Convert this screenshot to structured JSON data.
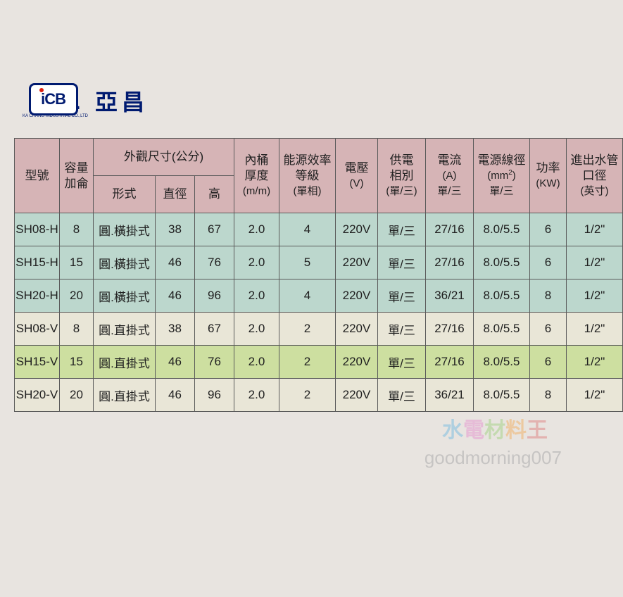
{
  "logo": {
    "box_text": "iCB",
    "brand": "亞昌",
    "subline": "KA CHANG INDUSTRIAL CO.,LTD"
  },
  "header": {
    "model": {
      "l1": "型號"
    },
    "capacity": {
      "l1": "容量",
      "l2": "加侖"
    },
    "dims_group": "外觀尺寸(公分)",
    "form": "形式",
    "diameter": "直徑",
    "height": "高",
    "thickness": {
      "l1": "內桶",
      "l2": "厚度",
      "unit": "(m/m)"
    },
    "efficiency": {
      "l1": "能源效率",
      "l2": "等級",
      "unit": "(單相)"
    },
    "voltage": {
      "l1": "電壓",
      "unit": "(V)"
    },
    "phase": {
      "l1": "供電",
      "l2": "相別",
      "unit": "(單/三)"
    },
    "current": {
      "l1": "電流",
      "unit1": "(A)",
      "unit2": "單/三"
    },
    "wire": {
      "l1": "電源線徑",
      "unit1": "(mm²)",
      "unit2": "單/三"
    },
    "power": {
      "l1": "功率",
      "unit": "(KW)"
    },
    "pipe": {
      "l1": "進出水管",
      "l2": "口徑",
      "unit": "(英寸)"
    }
  },
  "rows": [
    {
      "cls": "teal",
      "model": "SH08-H",
      "cap": "8",
      "form": "圓.橫掛式",
      "dia": "38",
      "hgt": "67",
      "thk": "2.0",
      "eff": "4",
      "volt": "220V",
      "phase": "單/三",
      "amp": "27/16",
      "wire": "8.0/5.5",
      "pow": "6",
      "pipe": "1/2\""
    },
    {
      "cls": "teal",
      "model": "SH15-H",
      "cap": "15",
      "form": "圓.橫掛式",
      "dia": "46",
      "hgt": "76",
      "thk": "2.0",
      "eff": "5",
      "volt": "220V",
      "phase": "單/三",
      "amp": "27/16",
      "wire": "8.0/5.5",
      "pow": "6",
      "pipe": "1/2\""
    },
    {
      "cls": "teal",
      "model": "SH20-H",
      "cap": "20",
      "form": "圓.橫掛式",
      "dia": "46",
      "hgt": "96",
      "thk": "2.0",
      "eff": "4",
      "volt": "220V",
      "phase": "單/三",
      "amp": "36/21",
      "wire": "8.0/5.5",
      "pow": "8",
      "pipe": "1/2\""
    },
    {
      "cls": "cream",
      "model": "SH08-V",
      "cap": "8",
      "form": "圓.直掛式",
      "dia": "38",
      "hgt": "67",
      "thk": "2.0",
      "eff": "2",
      "volt": "220V",
      "phase": "單/三",
      "amp": "27/16",
      "wire": "8.0/5.5",
      "pow": "6",
      "pipe": "1/2\""
    },
    {
      "cls": "green",
      "model": "SH15-V",
      "cap": "15",
      "form": "圓.直掛式",
      "dia": "46",
      "hgt": "76",
      "thk": "2.0",
      "eff": "2",
      "volt": "220V",
      "phase": "單/三",
      "amp": "27/16",
      "wire": "8.0/5.5",
      "pow": "6",
      "pipe": "1/2\""
    },
    {
      "cls": "cream",
      "model": "SH20-V",
      "cap": "20",
      "form": "圓.直掛式",
      "dia": "46",
      "hgt": "96",
      "thk": "2.0",
      "eff": "2",
      "volt": "220V",
      "phase": "單/三",
      "amp": "36/21",
      "wire": "8.0/5.5",
      "pow": "8",
      "pipe": "1/2\""
    }
  ],
  "watermark": {
    "text1": "水電材料王",
    "text2": "goodmorning007"
  },
  "style": {
    "header_bg": "#d6b4b6",
    "teal_bg": "#bcd7cd",
    "cream_bg": "#e9e6d7",
    "green_bg": "#cddfa0",
    "border": "#5a5a5a"
  }
}
